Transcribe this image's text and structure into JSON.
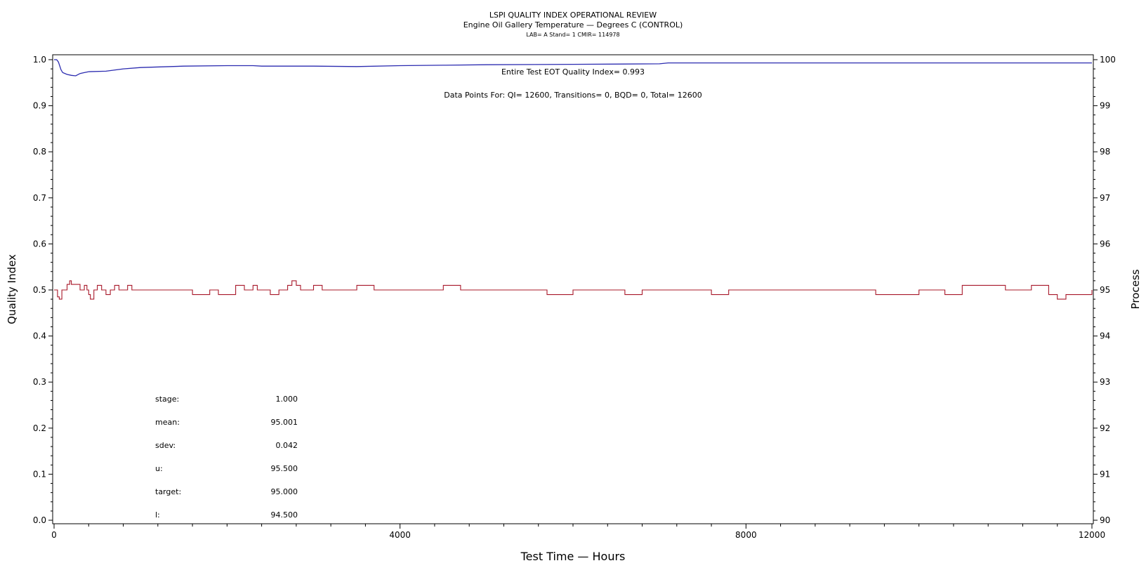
{
  "header": {
    "title": "LSPI QUALITY INDEX OPERATIONAL REVIEW",
    "subtitle": "Engine Oil Gallery Temperature — Degrees C (CONTROL)",
    "info": "LAB= A Stand= 1 CMIR= 114978"
  },
  "annotations": {
    "qi_summary": "Entire Test EOT Quality Index=   0.993",
    "points_summary": "Data Points For: QI= 12600, Transitions=     0, BQD=     0, Total= 12600"
  },
  "stats": [
    {
      "label": "stage:",
      "value": "1.000"
    },
    {
      "label": "mean:",
      "value": "95.001"
    },
    {
      "label": "sdev:",
      "value": "0.042"
    },
    {
      "label": "u:",
      "value": "95.500"
    },
    {
      "label": "target:",
      "value": "95.000"
    },
    {
      "label": "l:",
      "value": "94.500"
    }
  ],
  "colors": {
    "quality_index_line": "#2b2bb0",
    "process_line": "#a8182a",
    "axis": "#000000"
  },
  "chart_data": {
    "type": "line",
    "title": "LSPI QUALITY INDEX OPERATIONAL REVIEW",
    "xlabel": "Test Time — Hours",
    "ylabel": "Quality Index",
    "y2label": "Process",
    "xlim": [
      0,
      12000
    ],
    "ylim": [
      0,
      1
    ],
    "y2lim": [
      90,
      100
    ],
    "xticks": [
      0,
      4000,
      8000,
      12000
    ],
    "yticks": [
      0.0,
      0.1,
      0.2,
      0.3,
      0.4,
      0.5,
      0.6,
      0.7,
      0.8,
      0.9,
      1.0
    ],
    "y2ticks": [
      90,
      91,
      92,
      93,
      94,
      95,
      96,
      97,
      98,
      99,
      100
    ],
    "grid": false,
    "quality_index_series": {
      "axis": "left",
      "x": [
        0,
        30,
        50,
        80,
        100,
        150,
        200,
        250,
        300,
        350,
        400,
        600,
        800,
        1000,
        1500,
        2000,
        2300,
        2400,
        3000,
        3500,
        4000,
        4500,
        5000,
        6000,
        7000,
        7100,
        8000,
        9000,
        10000,
        11000,
        12000
      ],
      "y": [
        1.0,
        1.0,
        0.995,
        0.978,
        0.972,
        0.968,
        0.966,
        0.965,
        0.97,
        0.972,
        0.974,
        0.975,
        0.98,
        0.983,
        0.986,
        0.987,
        0.987,
        0.986,
        0.986,
        0.985,
        0.987,
        0.988,
        0.989,
        0.99,
        0.991,
        0.993,
        0.993,
        0.993,
        0.993,
        0.993,
        0.993
      ]
    },
    "process_series": {
      "axis": "right",
      "base_value": 95.0,
      "x": [
        0,
        40,
        60,
        90,
        150,
        180,
        200,
        270,
        300,
        350,
        380,
        400,
        420,
        460,
        500,
        550,
        600,
        650,
        700,
        750,
        800,
        850,
        900,
        1000,
        1100,
        1200,
        1500,
        1600,
        1800,
        1900,
        2100,
        2200,
        2300,
        2350,
        2400,
        2500,
        2600,
        2700,
        2750,
        2800,
        2850,
        3000,
        3100,
        3300,
        3500,
        3700,
        3900,
        4100,
        4300,
        4500,
        4700,
        5000,
        5300,
        5500,
        5700,
        6000,
        6300,
        6600,
        6800,
        7000,
        7300,
        7600,
        7800,
        8000,
        8500,
        9000,
        9500,
        10000,
        10300,
        10500,
        11000,
        11300,
        11500,
        11600,
        11700,
        11800,
        12000
      ],
      "y": [
        95.0,
        94.85,
        94.8,
        95.0,
        95.12,
        95.2,
        95.12,
        95.12,
        95.0,
        95.1,
        95.0,
        94.9,
        94.8,
        95.0,
        95.1,
        95.0,
        94.9,
        95.0,
        95.1,
        95.0,
        95.0,
        95.1,
        95.0,
        95.0,
        95.0,
        95.0,
        95.0,
        94.9,
        95.0,
        94.9,
        95.1,
        95.0,
        95.1,
        95.0,
        95.0,
        94.9,
        95.0,
        95.1,
        95.2,
        95.1,
        95.0,
        95.1,
        95.0,
        95.0,
        95.1,
        95.0,
        95.0,
        95.0,
        95.0,
        95.1,
        95.0,
        95.0,
        95.0,
        95.0,
        94.9,
        95.0,
        95.0,
        94.9,
        95.0,
        95.0,
        95.0,
        94.9,
        95.0,
        95.0,
        95.0,
        95.0,
        94.9,
        95.0,
        94.9,
        95.1,
        95.0,
        95.1,
        94.9,
        94.8,
        94.9,
        94.9,
        95.0
      ]
    }
  }
}
